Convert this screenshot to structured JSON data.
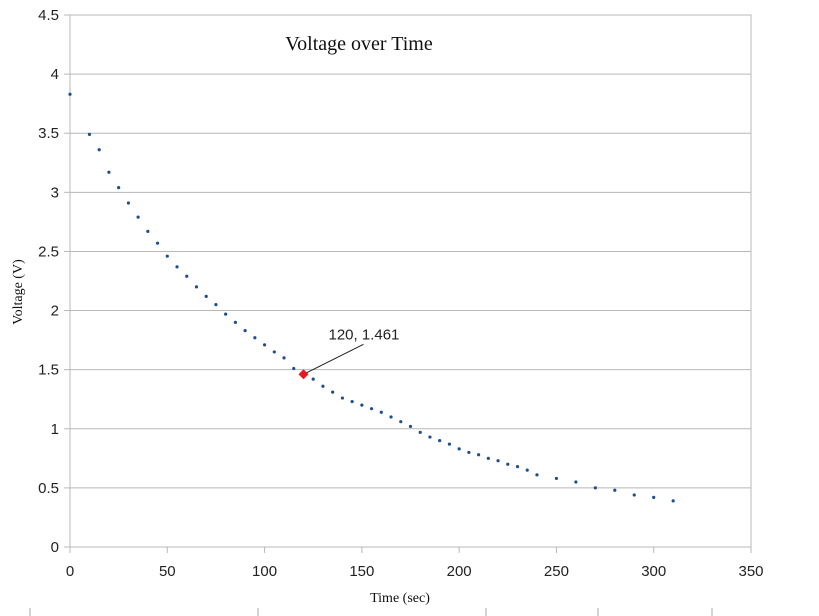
{
  "chart_data": {
    "type": "scatter",
    "title": "Voltage over Time",
    "xlabel": "Time (sec)",
    "ylabel": "Voltage (V)",
    "xlim": [
      0,
      350
    ],
    "ylim": [
      0,
      4.5
    ],
    "xticks": [
      0,
      50,
      100,
      150,
      200,
      250,
      300,
      350
    ],
    "yticks": [
      0,
      0.5,
      1,
      1.5,
      2,
      2.5,
      3,
      3.5,
      4,
      4.5
    ],
    "xtick_labels": [
      "0",
      "50",
      "100",
      "150",
      "200",
      "250",
      "300",
      "350"
    ],
    "ytick_labels": [
      "0",
      "0.5",
      "1",
      "1.5",
      "2",
      "2.5",
      "3",
      "3.5",
      "4",
      "4.5"
    ],
    "grid": true,
    "series": [
      {
        "color": "#1f4e8c",
        "x": [
          0,
          10,
          15,
          20,
          25,
          30,
          35,
          40,
          45,
          50,
          55,
          60,
          65,
          70,
          75,
          80,
          85,
          90,
          95,
          100,
          105,
          110,
          115,
          125,
          130,
          135,
          140,
          145,
          150,
          155,
          160,
          165,
          170,
          175,
          180,
          185,
          190,
          195,
          200,
          205,
          210,
          215,
          220,
          225,
          230,
          235,
          240,
          250,
          260,
          270,
          280,
          290,
          300,
          310
        ],
        "y": [
          3.83,
          3.49,
          3.36,
          3.17,
          3.04,
          2.91,
          2.79,
          2.67,
          2.57,
          2.46,
          2.37,
          2.29,
          2.2,
          2.12,
          2.05,
          1.97,
          1.9,
          1.83,
          1.77,
          1.71,
          1.65,
          1.6,
          1.51,
          1.42,
          1.36,
          1.31,
          1.26,
          1.23,
          1.2,
          1.17,
          1.14,
          1.1,
          1.06,
          1.02,
          0.97,
          0.93,
          0.9,
          0.87,
          0.83,
          0.8,
          0.78,
          0.75,
          0.73,
          0.7,
          0.68,
          0.65,
          0.61,
          0.58,
          0.55,
          0.5,
          0.48,
          0.44,
          0.42,
          0.39
        ]
      }
    ],
    "highlight": {
      "x": 120,
      "y": 1.461,
      "label": "120, 1.461",
      "color": "#e8191c"
    }
  }
}
